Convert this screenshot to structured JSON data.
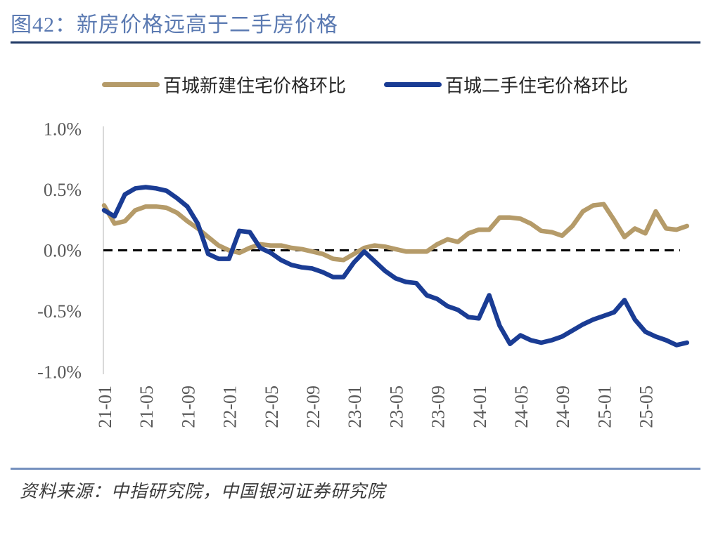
{
  "figure": {
    "title": "图42：新房价格远高于二手房价格"
  },
  "source": {
    "text": "资料来源：中指研究院，中国银河证券研究院"
  },
  "colors": {
    "background": "#FFFFFF",
    "title_text": "#5B7AB2",
    "title_rule": "#1F3864",
    "source_rule": "#7590BE",
    "axis_line": "#D9D9D9",
    "tick_label": "#595959",
    "legend_text": "#262626",
    "zero_line": "#000000"
  },
  "chart_data": {
    "type": "line",
    "title": "图42：新房价格远高于二手房价格",
    "xlabel": "",
    "ylabel": "",
    "unit": "%",
    "ylim": [
      -1.0,
      1.0
    ],
    "grid": false,
    "zero_line": "dashed",
    "legend_position": "top",
    "y_ticks": [
      {
        "label": "1.0%",
        "value": 1.0
      },
      {
        "label": "0.5%",
        "value": 0.5
      },
      {
        "label": "0.0%",
        "value": 0.0
      },
      {
        "label": "-0.5%",
        "value": -0.5
      },
      {
        "label": "-1.0%",
        "value": -1.0
      }
    ],
    "x": [
      "21-01",
      "21-02",
      "21-03",
      "21-04",
      "21-05",
      "21-06",
      "21-07",
      "21-08",
      "21-09",
      "21-10",
      "21-11",
      "21-12",
      "22-01",
      "22-02",
      "22-03",
      "22-04",
      "22-05",
      "22-06",
      "22-07",
      "22-08",
      "22-09",
      "22-10",
      "22-11",
      "22-12",
      "23-01",
      "23-02",
      "23-03",
      "23-04",
      "23-05",
      "23-06",
      "23-07",
      "23-08",
      "23-09",
      "23-10",
      "23-11",
      "23-12",
      "24-01",
      "24-02",
      "24-03",
      "24-04",
      "24-05",
      "24-06",
      "24-07",
      "24-08",
      "24-09",
      "24-10",
      "24-11",
      "24-12",
      "25-01",
      "25-02",
      "25-03",
      "25-04",
      "25-05",
      "25-06",
      "25-07",
      "25-08",
      "25-09"
    ],
    "x_tick_labels_shown": [
      "21-01",
      "21-05",
      "21-09",
      "22-01",
      "22-05",
      "22-09",
      "23-01",
      "23-05",
      "23-09",
      "24-01",
      "24-05",
      "24-09",
      "25-01",
      "25-05"
    ],
    "series": [
      {
        "name": "百城新建住宅价格环比",
        "color": "#B59B69",
        "values": [
          0.37,
          0.22,
          0.24,
          0.33,
          0.36,
          0.36,
          0.35,
          0.31,
          0.24,
          0.18,
          0.11,
          0.04,
          0.0,
          -0.02,
          0.02,
          0.05,
          0.04,
          0.04,
          0.02,
          0.01,
          -0.01,
          -0.03,
          -0.07,
          -0.08,
          -0.03,
          0.02,
          0.04,
          0.03,
          0.01,
          -0.01,
          -0.01,
          -0.01,
          0.05,
          0.09,
          0.07,
          0.14,
          0.17,
          0.17,
          0.27,
          0.27,
          0.26,
          0.22,
          0.16,
          0.15,
          0.12,
          0.2,
          0.32,
          0.37,
          0.38,
          0.25,
          0.11,
          0.18,
          0.14,
          0.32,
          0.18,
          0.17,
          0.2
        ]
      },
      {
        "name": "百城二手住宅价格环比",
        "color": "#1A3C94",
        "values": [
          0.33,
          0.28,
          0.46,
          0.51,
          0.52,
          0.51,
          0.49,
          0.43,
          0.36,
          0.22,
          -0.03,
          -0.07,
          -0.07,
          0.16,
          0.15,
          0.02,
          -0.02,
          -0.08,
          -0.12,
          -0.14,
          -0.15,
          -0.18,
          -0.22,
          -0.22,
          -0.1,
          -0.01,
          -0.09,
          -0.17,
          -0.23,
          -0.26,
          -0.27,
          -0.37,
          -0.4,
          -0.46,
          -0.49,
          -0.55,
          -0.56,
          -0.37,
          -0.62,
          -0.77,
          -0.7,
          -0.74,
          -0.76,
          -0.74,
          -0.71,
          -0.66,
          -0.61,
          -0.57,
          -0.54,
          -0.51,
          -0.41,
          -0.57,
          -0.67,
          -0.71,
          -0.74,
          -0.78,
          -0.76
        ]
      }
    ]
  }
}
